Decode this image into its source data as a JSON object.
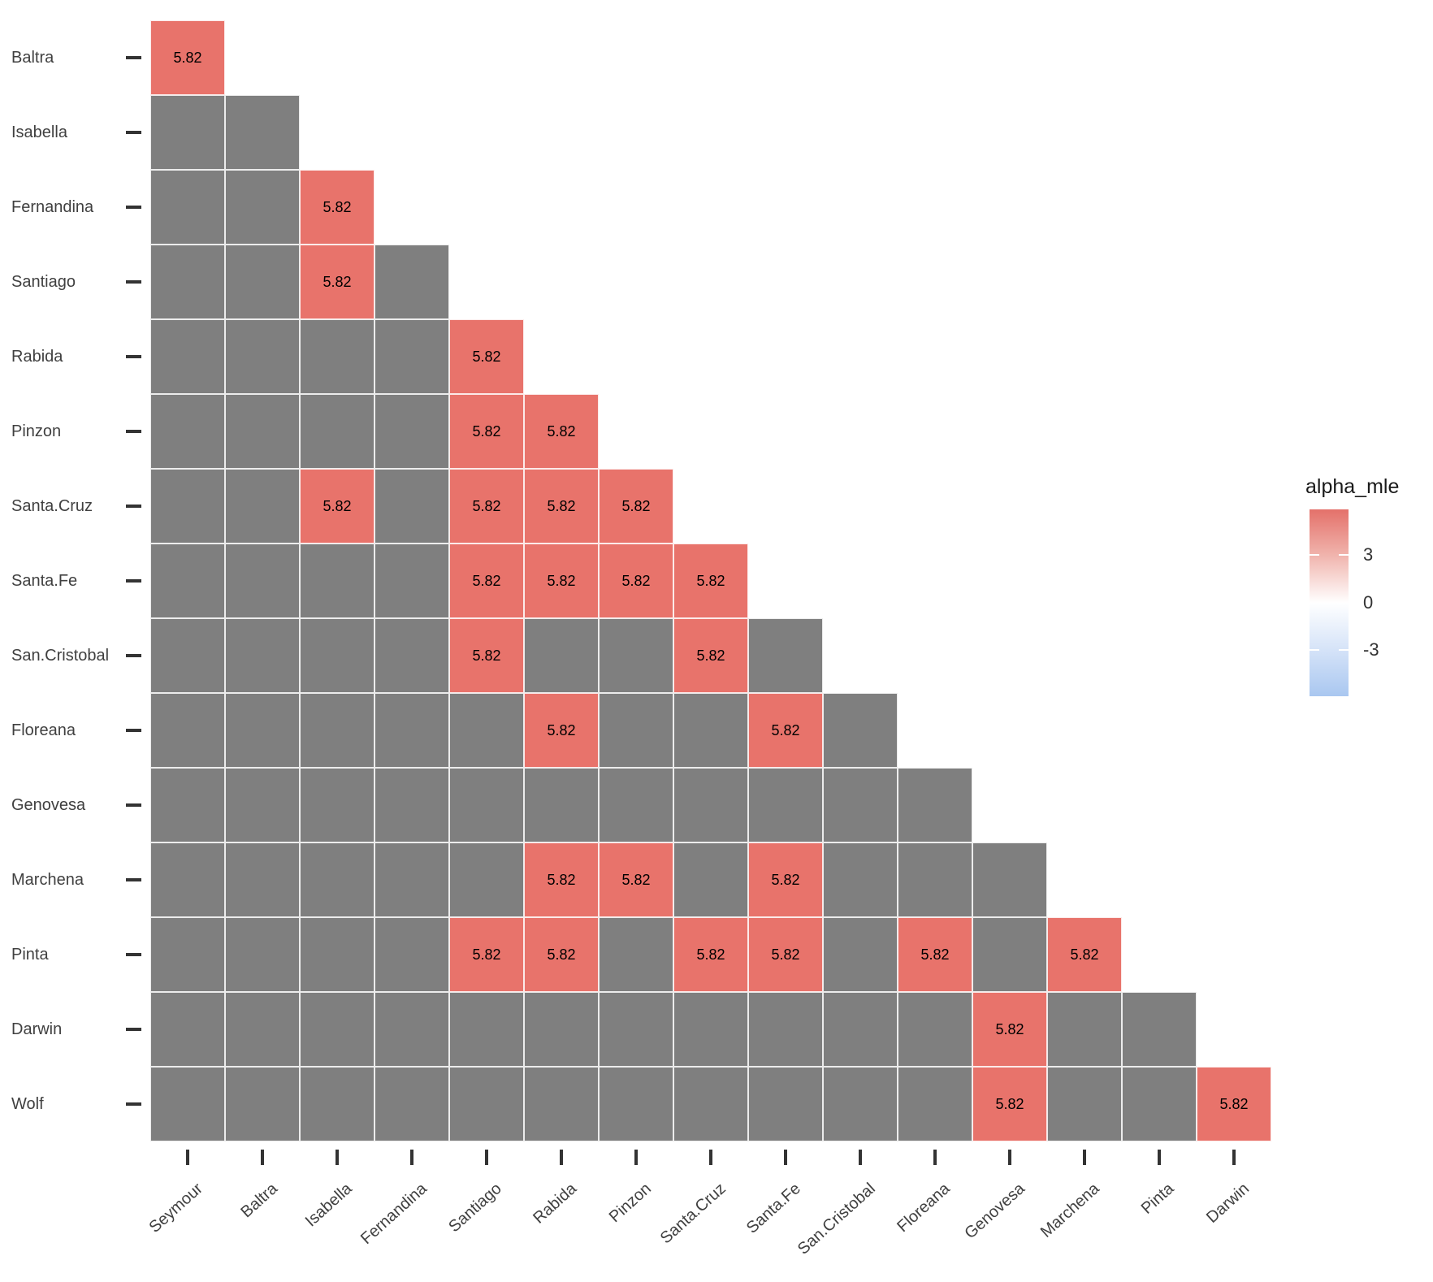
{
  "chart_data": {
    "type": "heatmap",
    "shape": "lower_triangle",
    "x_categories": [
      "Seymour",
      "Baltra",
      "Isabella",
      "Fernandina",
      "Santiago",
      "Rabida",
      "Pinzon",
      "Santa.Cruz",
      "Santa.Fe",
      "San.Cristobal",
      "Floreana",
      "Genovesa",
      "Marchena",
      "Pinta",
      "Darwin"
    ],
    "y_categories": [
      "Baltra",
      "Isabella",
      "Fernandina",
      "Santiago",
      "Rabida",
      "Pinzon",
      "Santa.Cruz",
      "Santa.Fe",
      "San.Cristobal",
      "Floreana",
      "Genovesa",
      "Marchena",
      "Pinta",
      "Darwin",
      "Wolf"
    ],
    "filled_cells": [
      {
        "row": "Baltra",
        "col": "Seymour",
        "value": 5.82
      },
      {
        "row": "Fernandina",
        "col": "Isabella",
        "value": 5.82
      },
      {
        "row": "Santiago",
        "col": "Isabella",
        "value": 5.82
      },
      {
        "row": "Rabida",
        "col": "Santiago",
        "value": 5.82
      },
      {
        "row": "Pinzon",
        "col": "Santiago",
        "value": 5.82
      },
      {
        "row": "Pinzon",
        "col": "Rabida",
        "value": 5.82
      },
      {
        "row": "Santa.Cruz",
        "col": "Isabella",
        "value": 5.82
      },
      {
        "row": "Santa.Cruz",
        "col": "Santiago",
        "value": 5.82
      },
      {
        "row": "Santa.Cruz",
        "col": "Rabida",
        "value": 5.82
      },
      {
        "row": "Santa.Cruz",
        "col": "Pinzon",
        "value": 5.82
      },
      {
        "row": "Santa.Fe",
        "col": "Santiago",
        "value": 5.82
      },
      {
        "row": "Santa.Fe",
        "col": "Rabida",
        "value": 5.82
      },
      {
        "row": "Santa.Fe",
        "col": "Pinzon",
        "value": 5.82
      },
      {
        "row": "Santa.Fe",
        "col": "Santa.Cruz",
        "value": 5.82
      },
      {
        "row": "San.Cristobal",
        "col": "Santiago",
        "value": 5.82
      },
      {
        "row": "San.Cristobal",
        "col": "Santa.Cruz",
        "value": 5.82
      },
      {
        "row": "Floreana",
        "col": "Rabida",
        "value": 5.82
      },
      {
        "row": "Floreana",
        "col": "Santa.Fe",
        "value": 5.82
      },
      {
        "row": "Marchena",
        "col": "Rabida",
        "value": 5.82
      },
      {
        "row": "Marchena",
        "col": "Pinzon",
        "value": 5.82
      },
      {
        "row": "Marchena",
        "col": "Santa.Fe",
        "value": 5.82
      },
      {
        "row": "Pinta",
        "col": "Santiago",
        "value": 5.82
      },
      {
        "row": "Pinta",
        "col": "Rabida",
        "value": 5.82
      },
      {
        "row": "Pinta",
        "col": "Santa.Cruz",
        "value": 5.82
      },
      {
        "row": "Pinta",
        "col": "Santa.Fe",
        "value": 5.82
      },
      {
        "row": "Pinta",
        "col": "Floreana",
        "value": 5.82
      },
      {
        "row": "Pinta",
        "col": "Marchena",
        "value": 5.82
      },
      {
        "row": "Darwin",
        "col": "Genovesa",
        "value": 5.82
      },
      {
        "row": "Wolf",
        "col": "Genovesa",
        "value": 5.82
      },
      {
        "row": "Wolf",
        "col": "Darwin",
        "value": 5.82
      }
    ],
    "legend": {
      "title": "alpha_mle",
      "tick_labels": [
        "3",
        "0",
        "-3"
      ],
      "tick_values": [
        3,
        0,
        -3
      ],
      "range": [
        -5.9,
        5.9
      ],
      "position": "right"
    },
    "grid": "light lines between tiles",
    "colors": {
      "filled_cell": "#E8736B",
      "na_cell": "#7F7F7F",
      "grid_line": "rgba(255,255,255,0.85)",
      "axis_text": "#404040",
      "tick_mark": "#333333",
      "legend_gradient_top": "#E4716A",
      "legend_gradient_mid": "#FFFFFF",
      "legend_gradient_bottom": "#A9C7F0"
    }
  }
}
